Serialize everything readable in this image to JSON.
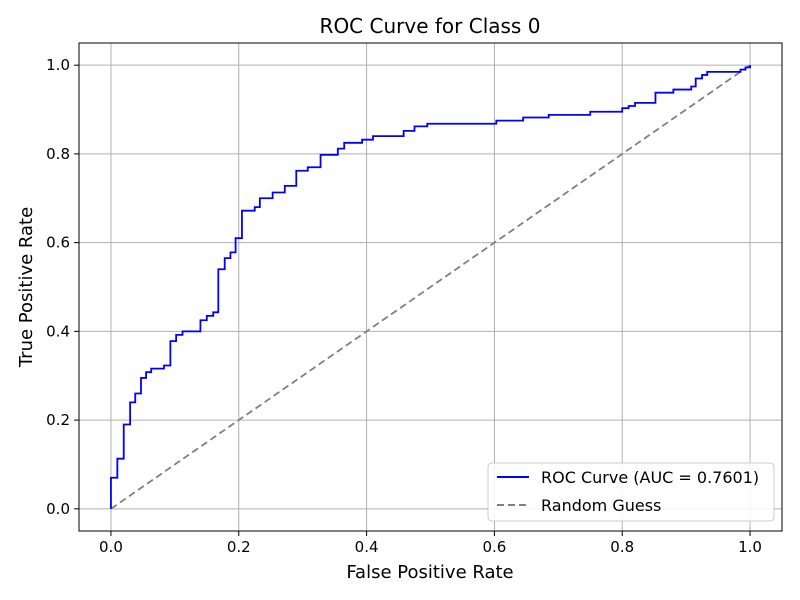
{
  "chart_data": {
    "type": "line",
    "title": "ROC Curve for Class 0",
    "xlabel": "False Positive Rate",
    "ylabel": "True Positive Rate",
    "xlim": [
      -0.05,
      1.05
    ],
    "ylim": [
      -0.05,
      1.05
    ],
    "xticks": [
      0.0,
      0.2,
      0.4,
      0.6,
      0.8,
      1.0
    ],
    "yticks": [
      0.0,
      0.2,
      0.4,
      0.6,
      0.8,
      1.0
    ],
    "xtick_labels": [
      "0.0",
      "0.2",
      "0.4",
      "0.6",
      "0.8",
      "1.0"
    ],
    "ytick_labels": [
      "0.0",
      "0.2",
      "0.4",
      "0.6",
      "0.8",
      "1.0"
    ],
    "grid": true,
    "legend_position": "lower-right",
    "series": [
      {
        "name": "ROC Curve (AUC = 0.7601)",
        "color": "#0000ff",
        "style": "solid",
        "step": true,
        "points": [
          [
            0.0,
            0.0
          ],
          [
            0.0,
            0.07
          ],
          [
            0.01,
            0.07
          ],
          [
            0.01,
            0.113
          ],
          [
            0.02,
            0.113
          ],
          [
            0.02,
            0.19
          ],
          [
            0.03,
            0.19
          ],
          [
            0.03,
            0.24
          ],
          [
            0.038,
            0.24
          ],
          [
            0.038,
            0.26
          ],
          [
            0.047,
            0.26
          ],
          [
            0.047,
            0.295
          ],
          [
            0.055,
            0.295
          ],
          [
            0.055,
            0.308
          ],
          [
            0.063,
            0.308
          ],
          [
            0.063,
            0.316
          ],
          [
            0.083,
            0.316
          ],
          [
            0.083,
            0.323
          ],
          [
            0.093,
            0.323
          ],
          [
            0.093,
            0.378
          ],
          [
            0.102,
            0.378
          ],
          [
            0.102,
            0.392
          ],
          [
            0.112,
            0.392
          ],
          [
            0.112,
            0.4
          ],
          [
            0.14,
            0.4
          ],
          [
            0.14,
            0.425
          ],
          [
            0.15,
            0.425
          ],
          [
            0.15,
            0.435
          ],
          [
            0.16,
            0.435
          ],
          [
            0.16,
            0.443
          ],
          [
            0.168,
            0.443
          ],
          [
            0.168,
            0.54
          ],
          [
            0.178,
            0.54
          ],
          [
            0.178,
            0.565
          ],
          [
            0.187,
            0.565
          ],
          [
            0.187,
            0.578
          ],
          [
            0.195,
            0.578
          ],
          [
            0.195,
            0.61
          ],
          [
            0.205,
            0.61
          ],
          [
            0.205,
            0.672
          ],
          [
            0.225,
            0.672
          ],
          [
            0.225,
            0.68
          ],
          [
            0.233,
            0.68
          ],
          [
            0.233,
            0.7
          ],
          [
            0.253,
            0.7
          ],
          [
            0.253,
            0.713
          ],
          [
            0.272,
            0.713
          ],
          [
            0.272,
            0.728
          ],
          [
            0.29,
            0.728
          ],
          [
            0.29,
            0.762
          ],
          [
            0.308,
            0.762
          ],
          [
            0.308,
            0.77
          ],
          [
            0.328,
            0.77
          ],
          [
            0.328,
            0.798
          ],
          [
            0.355,
            0.798
          ],
          [
            0.355,
            0.812
          ],
          [
            0.365,
            0.812
          ],
          [
            0.365,
            0.825
          ],
          [
            0.393,
            0.825
          ],
          [
            0.393,
            0.832
          ],
          [
            0.41,
            0.832
          ],
          [
            0.41,
            0.84
          ],
          [
            0.458,
            0.84
          ],
          [
            0.458,
            0.852
          ],
          [
            0.475,
            0.852
          ],
          [
            0.475,
            0.862
          ],
          [
            0.495,
            0.862
          ],
          [
            0.495,
            0.868
          ],
          [
            0.603,
            0.868
          ],
          [
            0.603,
            0.875
          ],
          [
            0.645,
            0.875
          ],
          [
            0.645,
            0.882
          ],
          [
            0.685,
            0.882
          ],
          [
            0.685,
            0.888
          ],
          [
            0.75,
            0.888
          ],
          [
            0.75,
            0.895
          ],
          [
            0.8,
            0.895
          ],
          [
            0.8,
            0.903
          ],
          [
            0.81,
            0.903
          ],
          [
            0.81,
            0.908
          ],
          [
            0.82,
            0.908
          ],
          [
            0.82,
            0.915
          ],
          [
            0.852,
            0.915
          ],
          [
            0.852,
            0.938
          ],
          [
            0.88,
            0.938
          ],
          [
            0.88,
            0.945
          ],
          [
            0.908,
            0.945
          ],
          [
            0.908,
            0.952
          ],
          [
            0.915,
            0.952
          ],
          [
            0.915,
            0.97
          ],
          [
            0.925,
            0.97
          ],
          [
            0.925,
            0.978
          ],
          [
            0.933,
            0.978
          ],
          [
            0.933,
            0.985
          ],
          [
            0.985,
            0.985
          ],
          [
            0.985,
            0.99
          ],
          [
            0.993,
            0.99
          ],
          [
            0.993,
            0.995
          ],
          [
            1.0,
            0.995
          ],
          [
            1.0,
            1.0
          ]
        ]
      },
      {
        "name": "Random Guess",
        "color": "#808080",
        "style": "dashed",
        "points": [
          [
            0.0,
            0.0
          ],
          [
            1.0,
            1.0
          ]
        ]
      }
    ]
  }
}
